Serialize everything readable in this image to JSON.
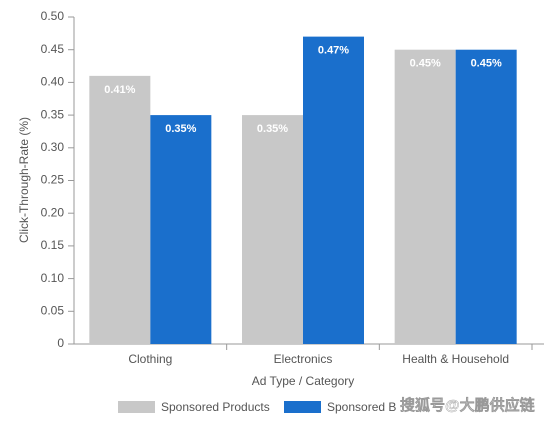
{
  "chart_data": {
    "type": "bar",
    "x_label": "Ad Type / Category",
    "y_label": "Click-Through-Rate (%)",
    "categories": [
      "Clothing",
      "Electronics",
      "Health & Household"
    ],
    "series": [
      {
        "name": "Sponsored Products",
        "color": "#c8c8c8",
        "values": [
          0.41,
          0.35,
          0.45
        ],
        "value_labels": [
          "0.41%",
          "0.35%",
          "0.45%"
        ]
      },
      {
        "name": "Sponsored B",
        "color": "#1a6fcc",
        "values": [
          0.35,
          0.47,
          0.45
        ],
        "value_labels": [
          "0.35%",
          "0.47%",
          "0.45%"
        ]
      }
    ],
    "ylim": [
      0,
      0.5
    ],
    "yticks": [
      0,
      0.05,
      {
        "value": 0.1,
        "label": "0.10"
      },
      0.15,
      {
        "value": 0.2,
        "label": "0.20"
      },
      0.25,
      {
        "value": 0.3,
        "label": "0.30"
      },
      0.35,
      {
        "value": 0.4,
        "label": "0.40"
      },
      0.45,
      {
        "value": 0.5,
        "label": "0.50"
      }
    ],
    "legend": "bottom",
    "watermark": "搜狐号@大鹏供应链"
  }
}
